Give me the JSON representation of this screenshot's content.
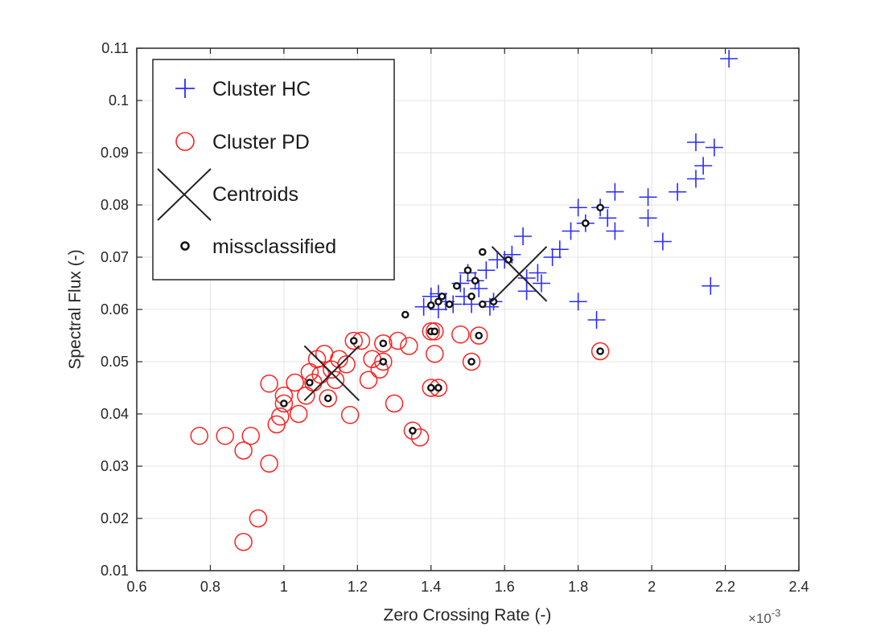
{
  "chart_data": {
    "type": "scatter",
    "title": "",
    "xlabel": "Zero Crossing Rate (-)",
    "ylabel": "Spectral Flux (-)",
    "x_exponent_label": "×10",
    "x_exponent_power": "-3",
    "xlim": [
      0.6,
      2.4
    ],
    "ylim": [
      0.01,
      0.11
    ],
    "x_ticks": [
      0.6,
      0.8,
      1,
      1.2,
      1.4,
      1.6,
      1.8,
      2,
      2.2,
      2.4
    ],
    "x_tick_labels": [
      "0.6",
      "0.8",
      "1",
      "1.2",
      "1.4",
      "1.6",
      "1.8",
      "2",
      "2.2",
      "2.4"
    ],
    "y_ticks": [
      0.01,
      0.02,
      0.03,
      0.04,
      0.05,
      0.06,
      0.07,
      0.08,
      0.09,
      0.1,
      0.11
    ],
    "y_tick_labels": [
      "0.01",
      "0.02",
      "0.03",
      "0.04",
      "0.05",
      "0.06",
      "0.07",
      "0.08",
      "0.09",
      "0.1",
      "0.11"
    ],
    "grid": true,
    "legend_position": "top-left",
    "colors": {
      "hc": "#2b2bff",
      "pd": "#ff2020",
      "centroid": "#222222",
      "miss": "#111111"
    },
    "series": [
      {
        "name": "Cluster HC",
        "marker": "plus",
        "points": [
          [
            2.21,
            0.108
          ],
          [
            2.12,
            0.092
          ],
          [
            2.17,
            0.091
          ],
          [
            2.14,
            0.0875
          ],
          [
            2.12,
            0.085
          ],
          [
            1.9,
            0.0825
          ],
          [
            1.99,
            0.0815
          ],
          [
            2.07,
            0.0825
          ],
          [
            1.86,
            0.0795
          ],
          [
            1.8,
            0.0795
          ],
          [
            1.88,
            0.0775
          ],
          [
            1.82,
            0.0765
          ],
          [
            1.78,
            0.075
          ],
          [
            1.9,
            0.075
          ],
          [
            1.99,
            0.0775
          ],
          [
            2.03,
            0.073
          ],
          [
            1.75,
            0.0715
          ],
          [
            1.73,
            0.07
          ],
          [
            1.65,
            0.074
          ],
          [
            1.62,
            0.0705
          ],
          [
            1.58,
            0.0695
          ],
          [
            1.66,
            0.066
          ],
          [
            1.69,
            0.067
          ],
          [
            1.55,
            0.0675
          ],
          [
            1.52,
            0.0655
          ],
          [
            1.5,
            0.067
          ],
          [
            1.48,
            0.065
          ],
          [
            1.42,
            0.063
          ],
          [
            1.4,
            0.0625
          ],
          [
            1.44,
            0.0615
          ],
          [
            1.46,
            0.061
          ],
          [
            1.51,
            0.061
          ],
          [
            1.56,
            0.0605
          ],
          [
            1.66,
            0.0635
          ],
          [
            1.42,
            0.06
          ],
          [
            1.38,
            0.0605
          ],
          [
            1.6,
            0.0695
          ],
          [
            1.49,
            0.0625
          ],
          [
            1.53,
            0.064
          ],
          [
            1.57,
            0.0615
          ],
          [
            1.8,
            0.0615
          ],
          [
            1.85,
            0.058
          ],
          [
            2.16,
            0.0645
          ],
          [
            1.7,
            0.065
          ]
        ]
      },
      {
        "name": "Cluster PD",
        "marker": "circle",
        "points": [
          [
            0.77,
            0.0358
          ],
          [
            0.84,
            0.0358
          ],
          [
            0.89,
            0.033
          ],
          [
            0.91,
            0.0358
          ],
          [
            0.96,
            0.0305
          ],
          [
            0.93,
            0.02
          ],
          [
            0.89,
            0.0155
          ],
          [
            0.98,
            0.038
          ],
          [
            0.99,
            0.0395
          ],
          [
            1.04,
            0.04
          ],
          [
            0.96,
            0.0458
          ],
          [
            1.0,
            0.0435
          ],
          [
            1.03,
            0.046
          ],
          [
            1.06,
            0.0435
          ],
          [
            1.07,
            0.048
          ],
          [
            1.09,
            0.0505
          ],
          [
            1.11,
            0.0515
          ],
          [
            1.13,
            0.0485
          ],
          [
            1.15,
            0.0505
          ],
          [
            1.17,
            0.0495
          ],
          [
            1.14,
            0.0465
          ],
          [
            1.12,
            0.043
          ],
          [
            1.08,
            0.046
          ],
          [
            1.19,
            0.054
          ],
          [
            1.21,
            0.054
          ],
          [
            1.24,
            0.0505
          ],
          [
            1.23,
            0.0465
          ],
          [
            1.26,
            0.0485
          ],
          [
            1.27,
            0.05
          ],
          [
            1.27,
            0.0535
          ],
          [
            1.31,
            0.054
          ],
          [
            1.34,
            0.053
          ],
          [
            1.3,
            0.042
          ],
          [
            1.35,
            0.0368
          ],
          [
            1.37,
            0.0355
          ],
          [
            1.4,
            0.045
          ],
          [
            1.42,
            0.045
          ],
          [
            1.4,
            0.0558
          ],
          [
            1.41,
            0.0558
          ],
          [
            1.41,
            0.0515
          ],
          [
            1.48,
            0.0552
          ],
          [
            1.53,
            0.055
          ],
          [
            1.51,
            0.05
          ],
          [
            1.86,
            0.052
          ],
          [
            1.18,
            0.0398
          ],
          [
            1.0,
            0.042
          ],
          [
            1.1,
            0.0475
          ]
        ]
      },
      {
        "name": "Centroids",
        "marker": "x",
        "points": [
          [
            1.64,
            0.0668
          ],
          [
            1.13,
            0.0478
          ]
        ]
      },
      {
        "name": "missclassified",
        "marker": "dot",
        "points": [
          [
            1.86,
            0.0795
          ],
          [
            1.82,
            0.0765
          ],
          [
            1.61,
            0.0695
          ],
          [
            1.54,
            0.071
          ],
          [
            1.5,
            0.0675
          ],
          [
            1.52,
            0.0655
          ],
          [
            1.47,
            0.0645
          ],
          [
            1.43,
            0.0625
          ],
          [
            1.45,
            0.061
          ],
          [
            1.4,
            0.0608
          ],
          [
            1.42,
            0.0615
          ],
          [
            1.33,
            0.059
          ],
          [
            1.51,
            0.0625
          ],
          [
            1.54,
            0.061
          ],
          [
            1.57,
            0.0615
          ],
          [
            1.19,
            0.054
          ],
          [
            1.27,
            0.0535
          ],
          [
            1.27,
            0.05
          ],
          [
            1.4,
            0.0558
          ],
          [
            1.41,
            0.0558
          ],
          [
            1.53,
            0.055
          ],
          [
            1.51,
            0.05
          ],
          [
            1.86,
            0.052
          ],
          [
            1.07,
            0.046
          ],
          [
            1.12,
            0.043
          ],
          [
            1.0,
            0.042
          ],
          [
            1.4,
            0.045
          ],
          [
            1.42,
            0.045
          ],
          [
            1.35,
            0.0368
          ]
        ]
      }
    ]
  }
}
